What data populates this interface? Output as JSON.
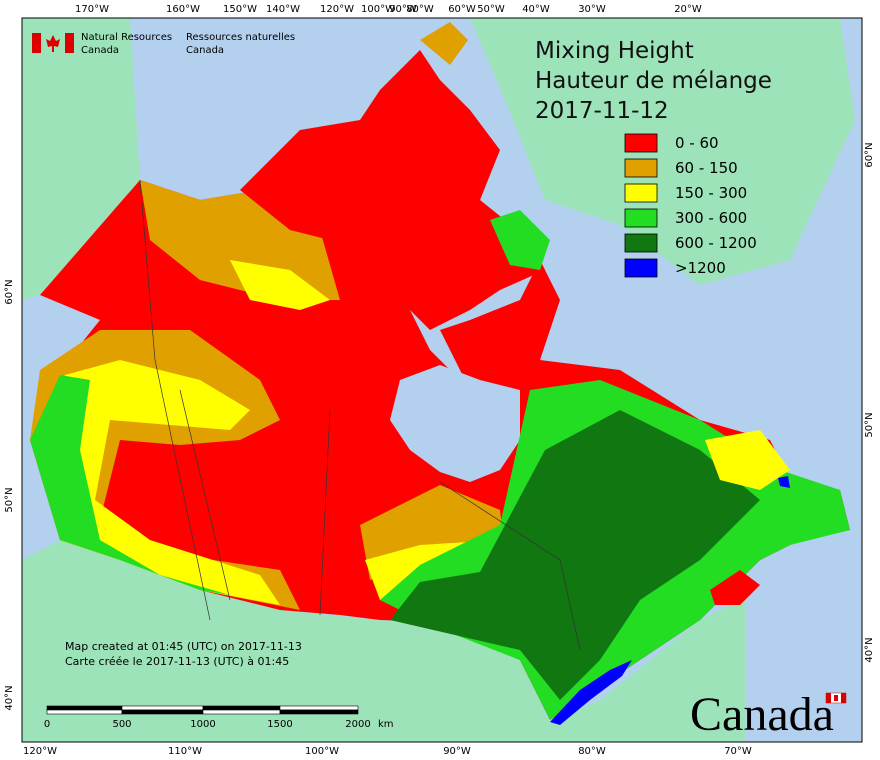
{
  "header": {
    "agency_en": [
      "Natural Resources",
      "Canada"
    ],
    "agency_fr": [
      "Ressources naturelles",
      "Canada"
    ]
  },
  "title": [
    "Mixing Height",
    "Hauteur de mélange",
    "2017-11-12"
  ],
  "legend": [
    {
      "label": "0 - 60",
      "color": "#ff0000"
    },
    {
      "label": "60 - 150",
      "color": "#e0a000"
    },
    {
      "label": "150 - 300",
      "color": "#ffff00"
    },
    {
      "label": "300 - 600",
      "color": "#22dd22"
    },
    {
      "label": "600 - 1200",
      "color": "#117711"
    },
    {
      "label": ">1200",
      "color": "#0000ff"
    }
  ],
  "top_longitudes": [
    "170°W",
    "160°W",
    "150°W",
    "140°W",
    "120°W",
    "100°W",
    "90°W",
    "80°W",
    "60°W",
    "50°W",
    "40°W",
    "30°W",
    "20°W"
  ],
  "bottom_longitudes": [
    "120°W",
    "110°W",
    "100°W",
    "90°W",
    "80°W",
    "70°W"
  ],
  "left_latitudes": [
    "60°N",
    "50°N",
    "40°N"
  ],
  "right_latitudes": [
    "60°N",
    "50°N",
    "40°N"
  ],
  "notes": [
    "Map created at 01:45 (UTC) on 2017-11-13",
    "Carte créée le 2017-11-13 (UTC) à 01:45"
  ],
  "scale_bar": {
    "labels": [
      "0",
      "500",
      "1000",
      "1500",
      "2000"
    ],
    "unit": "km"
  },
  "wordmark": "Canada"
}
